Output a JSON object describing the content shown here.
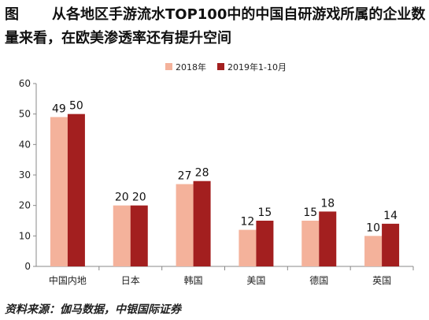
{
  "figure": {
    "label": "图",
    "title": "从各地区手游流水TOP100中的中国自研游戏所属的企业数量来看，在欧美渗透率还有提升空间",
    "source": "资料来源：伽马数据，中银国际证券"
  },
  "chart_data": {
    "type": "bar",
    "title": "",
    "xlabel": "",
    "ylabel": "",
    "categories": [
      "中国内地",
      "日本",
      "韩国",
      "美国",
      "德国",
      "英国"
    ],
    "series": [
      {
        "name": "2018年",
        "values": [
          49,
          20,
          27,
          12,
          15,
          10
        ],
        "color": "#F4B29B"
      },
      {
        "name": "2019年1-10月",
        "values": [
          50,
          20,
          28,
          15,
          18,
          14
        ],
        "color": "#A31F1F"
      }
    ],
    "ylim": [
      0,
      60
    ],
    "yticks": [
      0,
      10,
      20,
      30,
      40,
      50,
      60
    ],
    "grid": false,
    "legend": "top-center",
    "data_labels": true
  }
}
